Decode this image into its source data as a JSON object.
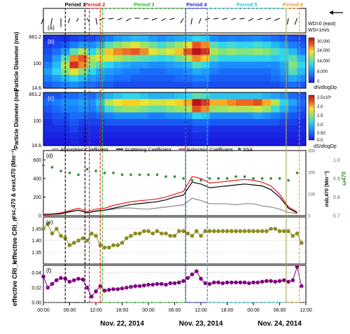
{
  "chart_data": [
    {
      "id": "a",
      "type": "vector",
      "panel_label": "(a)",
      "legend": [
        "WD=0 (east)",
        "WS=1m/s"
      ],
      "periods": [
        {
          "name": "Period 1",
          "start": 5.0,
          "end": 9.5,
          "color": "#000000"
        },
        {
          "name": "Period 2",
          "start": 10.5,
          "end": 13.0,
          "color": "#e41a1c"
        },
        {
          "name": "Period 3",
          "start": 13.5,
          "end": 32.5,
          "color": "#22c022"
        },
        {
          "name": "Period 4",
          "start": 32.5,
          "end": 37.5,
          "color": "#2222dd"
        },
        {
          "name": "Period 5",
          "start": 37.5,
          "end": 55.5,
          "color": "#22cccc"
        },
        {
          "name": "Period 6",
          "start": 55.5,
          "end": 58.5,
          "color": "#f39c12"
        }
      ],
      "x": [
        0,
        2,
        4,
        6,
        8,
        10,
        12,
        14,
        16,
        18,
        20,
        22,
        24,
        26,
        28,
        30,
        32,
        34,
        36,
        38,
        40,
        42,
        44,
        46,
        48,
        50,
        52,
        54,
        56,
        58
      ],
      "wind_dir_deg": [
        250,
        260,
        270,
        255,
        240,
        300,
        280,
        200,
        190,
        200,
        210,
        180,
        190,
        200,
        210,
        195,
        240,
        260,
        250,
        200,
        190,
        195,
        200,
        190,
        210,
        200,
        195,
        205,
        260,
        250
      ],
      "wind_speed": [
        1.0,
        1.2,
        1.4,
        0.8,
        0.6,
        0.7,
        1.0,
        0.9,
        0.8,
        0.8,
        0.9,
        0.8,
        0.8,
        0.9,
        0.8,
        0.8,
        0.9,
        1.0,
        0.9,
        0.8,
        0.8,
        0.8,
        0.8,
        0.8,
        0.9,
        0.8,
        0.8,
        0.9,
        1.0,
        1.1
      ]
    },
    {
      "id": "b",
      "type": "heatmap",
      "panel_label": "(b)",
      "ylabel": "Particle Diameter (nm)",
      "yticks": [
        "661.2",
        "100",
        "14.6"
      ],
      "colorbar_label": "dN/dlogDp",
      "colorbar_ticks": [
        "30,000",
        "24,000",
        "16,000",
        "8,000",
        "0"
      ],
      "rows_from_top_to_bottom": 8,
      "x": [
        0,
        2,
        4,
        6,
        8,
        10,
        12,
        14,
        16,
        18,
        20,
        22,
        24,
        26,
        28,
        30,
        32,
        34,
        36,
        38,
        40,
        42,
        44,
        46,
        48,
        50,
        52,
        54,
        56,
        58
      ],
      "values": [
        [
          1000,
          1500,
          1200,
          2000,
          3000,
          2500,
          4000,
          6000,
          8000,
          9000,
          10000,
          9500,
          8000,
          7000,
          8000,
          9000,
          10000,
          12000,
          11000,
          7000,
          6000,
          6500,
          6000,
          6500,
          7000,
          6000,
          5000,
          4000,
          3000,
          2500
        ],
        [
          2000,
          3000,
          4000,
          6000,
          8000,
          7000,
          9000,
          14000,
          16000,
          18000,
          20000,
          17000,
          15000,
          13000,
          15000,
          17000,
          20000,
          26000,
          24000,
          14000,
          12000,
          13000,
          12000,
          12000,
          13000,
          12000,
          10000,
          8000,
          6000,
          4000
        ],
        [
          3000,
          5000,
          8000,
          14000,
          18000,
          12000,
          16000,
          22000,
          24000,
          25000,
          26000,
          24000,
          20000,
          18000,
          20000,
          22000,
          26000,
          30000,
          28000,
          18000,
          16000,
          17000,
          16000,
          16000,
          17000,
          16000,
          14000,
          12000,
          10000,
          6000
        ],
        [
          4000,
          8000,
          14000,
          24000,
          26000,
          18000,
          20000,
          20000,
          18000,
          16000,
          15000,
          14000,
          13000,
          12000,
          13000,
          15000,
          18000,
          24000,
          22000,
          14000,
          12000,
          12000,
          12000,
          12000,
          12000,
          12000,
          11000,
          12000,
          14000,
          10000
        ],
        [
          6000,
          10000,
          18000,
          28000,
          24000,
          16000,
          14000,
          12000,
          10000,
          9000,
          8000,
          8000,
          7000,
          7000,
          8000,
          9000,
          10000,
          14000,
          12000,
          8000,
          7000,
          7000,
          7000,
          7000,
          7000,
          7000,
          7000,
          9000,
          16000,
          12000
        ],
        [
          8000,
          12000,
          16000,
          20000,
          16000,
          12000,
          9000,
          8000,
          7000,
          6000,
          6000,
          5000,
          5000,
          5000,
          6000,
          6000,
          7000,
          9000,
          8000,
          6000,
          5000,
          5000,
          5000,
          5000,
          5000,
          5000,
          6000,
          8000,
          14000,
          10000
        ],
        [
          6000,
          8000,
          10000,
          12000,
          10000,
          8000,
          7000,
          6000,
          5000,
          5000,
          4000,
          4000,
          4000,
          4000,
          4000,
          5000,
          5000,
          6000,
          6000,
          4000,
          4000,
          4000,
          4000,
          4000,
          4000,
          4000,
          5000,
          6000,
          9000,
          7000
        ],
        [
          4000,
          5000,
          6000,
          7000,
          6000,
          5000,
          4000,
          4000,
          3000,
          3000,
          3000,
          3000,
          3000,
          3000,
          3000,
          3000,
          3000,
          4000,
          4000,
          3000,
          3000,
          3000,
          3000,
          3000,
          3000,
          3000,
          3000,
          4000,
          5000,
          4000
        ]
      ],
      "zlim": [
        0,
        30000
      ]
    },
    {
      "id": "c",
      "type": "heatmap",
      "panel_label": "(c)",
      "ylabel": "Particle Diameter (nm)",
      "yticks": [
        "661.2",
        "100",
        "14.6"
      ],
      "colorbar_label": "dS/dlogDp",
      "colorbar_ticks": [
        "2.5x10⁹",
        "2.0",
        "1.5",
        "1.0",
        "0.50",
        "0.0"
      ],
      "rows_from_top_to_bottom": 8,
      "x": [
        0,
        2,
        4,
        6,
        8,
        10,
        12,
        14,
        16,
        18,
        20,
        22,
        24,
        26,
        28,
        30,
        32,
        34,
        36,
        38,
        40,
        42,
        44,
        46,
        48,
        50,
        52,
        54,
        56,
        58
      ],
      "values": [
        [
          0.3,
          0.3,
          0.4,
          0.4,
          0.5,
          0.4,
          0.6,
          0.8,
          0.9,
          1.0,
          1.0,
          0.9,
          0.8,
          0.8,
          0.8,
          0.9,
          1.0,
          1.2,
          1.1,
          0.9,
          0.9,
          0.9,
          0.9,
          0.9,
          0.9,
          0.8,
          0.7,
          0.6,
          0.4,
          0.3
        ],
        [
          0.4,
          0.5,
          0.6,
          0.6,
          0.7,
          0.6,
          0.9,
          1.5,
          1.7,
          1.8,
          1.8,
          1.7,
          1.6,
          1.6,
          1.7,
          1.8,
          1.9,
          2.5,
          2.3,
          1.9,
          1.9,
          2.0,
          2.1,
          2.1,
          2.2,
          1.9,
          1.5,
          1.0,
          0.7,
          0.4
        ],
        [
          0.3,
          0.4,
          0.5,
          0.5,
          0.6,
          0.5,
          0.7,
          1.1,
          1.3,
          1.4,
          1.4,
          1.3,
          1.2,
          1.2,
          1.3,
          1.4,
          1.5,
          2.2,
          2.0,
          1.4,
          1.4,
          1.5,
          1.5,
          1.5,
          1.6,
          1.4,
          1.1,
          0.8,
          0.5,
          0.3
        ],
        [
          0.2,
          0.3,
          0.3,
          0.4,
          0.4,
          0.3,
          0.4,
          0.5,
          0.6,
          0.6,
          0.6,
          0.6,
          0.5,
          0.5,
          0.6,
          0.6,
          0.7,
          1.0,
          0.9,
          0.6,
          0.6,
          0.6,
          0.6,
          0.6,
          0.7,
          0.6,
          0.5,
          0.4,
          0.3,
          0.2
        ],
        [
          0.1,
          0.2,
          0.2,
          0.3,
          0.2,
          0.2,
          0.2,
          0.3,
          0.3,
          0.3,
          0.3,
          0.3,
          0.3,
          0.3,
          0.3,
          0.3,
          0.3,
          0.4,
          0.4,
          0.3,
          0.3,
          0.3,
          0.3,
          0.3,
          0.3,
          0.3,
          0.3,
          0.2,
          0.2,
          0.1
        ],
        [
          0.1,
          0.1,
          0.1,
          0.2,
          0.1,
          0.1,
          0.1,
          0.1,
          0.1,
          0.1,
          0.1,
          0.1,
          0.1,
          0.1,
          0.1,
          0.1,
          0.1,
          0.2,
          0.2,
          0.1,
          0.1,
          0.1,
          0.1,
          0.1,
          0.1,
          0.1,
          0.1,
          0.1,
          0.1,
          0.1
        ],
        [
          0.05,
          0.05,
          0.05,
          0.1,
          0.05,
          0.05,
          0.05,
          0.05,
          0.05,
          0.05,
          0.05,
          0.05,
          0.05,
          0.05,
          0.05,
          0.05,
          0.05,
          0.1,
          0.1,
          0.05,
          0.05,
          0.05,
          0.05,
          0.05,
          0.05,
          0.05,
          0.05,
          0.05,
          0.05,
          0.05
        ],
        [
          0.0,
          0.0,
          0.0,
          0.05,
          0.0,
          0.0,
          0.0,
          0.0,
          0.0,
          0.0,
          0.0,
          0.0,
          0.0,
          0.0,
          0.0,
          0.0,
          0.0,
          0.05,
          0.05,
          0.0,
          0.0,
          0.0,
          0.0,
          0.0,
          0.0,
          0.0,
          0.0,
          0.0,
          0.0,
          0.0
        ]
      ],
      "zlim": [
        0,
        2.5
      ]
    },
    {
      "id": "d",
      "type": "line",
      "panel_label": "(d)",
      "ylabel_left": "σsc,470 & σext,470 (Mm⁻¹)",
      "ylabel_right1": "σab,470 (Mm⁻¹)",
      "ylabel_right2": "ω470",
      "ylim_left": [
        0,
        700
      ],
      "yticks_left": [
        0,
        200,
        400,
        600
      ],
      "ylim_right1": [
        0,
        300
      ],
      "yticks_right1": [
        0,
        100,
        200,
        300
      ],
      "ylim_right2": [
        0.7,
        1.05
      ],
      "yticks_right2": [
        0.7,
        0.8,
        0.9,
        1.0
      ],
      "legend": [
        "Absorption Coefficient",
        "Scattering Coefficient",
        "Extinction Coefficient",
        "SSA"
      ],
      "x": [
        0,
        2,
        4,
        6,
        8,
        10,
        12,
        14,
        16,
        18,
        20,
        22,
        24,
        26,
        28,
        30,
        32,
        34,
        36,
        38,
        40,
        42,
        44,
        46,
        48,
        50,
        52,
        54,
        56,
        58
      ],
      "series": [
        {
          "name": "Absorption Coefficient",
          "axis": "right1",
          "color": "#888888",
          "values": [
            5,
            8,
            12,
            20,
            25,
            15,
            20,
            25,
            30,
            35,
            35,
            32,
            30,
            35,
            40,
            45,
            50,
            80,
            70,
            55,
            55,
            55,
            50,
            55,
            55,
            45,
            40,
            30,
            15,
            10
          ]
        },
        {
          "name": "Scattering Coefficient",
          "axis": "left",
          "color": "#000000",
          "values": [
            10,
            15,
            20,
            40,
            60,
            30,
            50,
            60,
            80,
            100,
            120,
            130,
            140,
            150,
            170,
            200,
            220,
            360,
            340,
            300,
            310,
            320,
            330,
            340,
            330,
            320,
            280,
            200,
            80,
            30
          ]
        },
        {
          "name": "Extinction Coefficient",
          "axis": "left",
          "color": "#e41a1c",
          "values": [
            15,
            20,
            30,
            55,
            80,
            45,
            70,
            80,
            110,
            130,
            150,
            160,
            170,
            180,
            200,
            230,
            260,
            420,
            400,
            350,
            360,
            370,
            380,
            390,
            380,
            360,
            320,
            230,
            95,
            40
          ]
        },
        {
          "name": "SSA",
          "axis": "right2",
          "color": "#2e8b2e",
          "values": [
            0.97,
            0.96,
            0.94,
            0.93,
            0.92,
            0.95,
            0.94,
            0.93,
            0.93,
            0.92,
            0.92,
            0.92,
            0.92,
            0.92,
            0.91,
            0.91,
            0.9,
            0.89,
            0.89,
            0.9,
            0.9,
            0.9,
            0.91,
            0.91,
            0.9,
            0.9,
            0.9,
            0.9,
            0.89,
            0.93
          ]
        }
      ]
    },
    {
      "id": "e",
      "type": "scatter",
      "panel_label": "(e)",
      "ylabel": "effective CRI_n",
      "ylim": [
        1.3,
        1.5
      ],
      "yticks": [
        1.35,
        1.4,
        1.45
      ],
      "color": "#8b8b1c",
      "x": [
        0,
        1,
        2,
        3,
        4,
        5,
        6,
        7,
        8,
        9,
        10,
        11,
        12,
        13,
        14,
        15,
        16,
        17,
        18,
        19,
        20,
        21,
        22,
        23,
        24,
        25,
        26,
        27,
        28,
        29,
        30,
        31,
        32,
        33,
        34,
        35,
        36,
        37,
        38,
        39,
        40,
        41,
        42,
        43,
        44,
        45,
        46,
        47,
        48,
        49,
        50,
        51,
        52,
        53,
        54,
        55,
        56,
        57,
        58,
        59
      ],
      "values": [
        1.45,
        1.47,
        1.43,
        1.45,
        1.42,
        1.41,
        1.38,
        1.39,
        1.4,
        1.41,
        1.4,
        1.43,
        1.42,
        1.38,
        1.37,
        1.37,
        1.38,
        1.38,
        1.39,
        1.41,
        1.42,
        1.43,
        1.43,
        1.44,
        1.44,
        1.43,
        1.44,
        1.43,
        1.43,
        1.42,
        1.42,
        1.44,
        1.44,
        1.43,
        1.42,
        1.44,
        1.42,
        1.44,
        1.44,
        1.44,
        1.44,
        1.44,
        1.44,
        1.44,
        1.44,
        1.44,
        1.44,
        1.44,
        1.44,
        1.44,
        1.44,
        1.44,
        1.45,
        1.45,
        1.44,
        1.44,
        1.44,
        1.42,
        1.43,
        1.39
      ]
    },
    {
      "id": "f",
      "type": "scatter",
      "panel_label": "(f)",
      "ylabel": "effective CRI_k",
      "ylim": [
        0,
        0.05
      ],
      "yticks": [
        0.0,
        0.02,
        0.04
      ],
      "color": "#800080",
      "x": [
        0,
        1,
        2,
        3,
        4,
        5,
        6,
        7,
        8,
        9,
        10,
        11,
        12,
        13,
        14,
        15,
        16,
        17,
        18,
        19,
        20,
        21,
        22,
        23,
        24,
        25,
        26,
        27,
        28,
        29,
        30,
        31,
        32,
        33,
        34,
        35,
        36,
        37,
        38,
        39,
        40,
        41,
        42,
        43,
        44,
        45,
        46,
        47,
        48,
        49,
        50,
        51,
        52,
        53,
        54,
        55,
        56,
        57,
        58,
        59
      ],
      "values": [
        0.035,
        0.02,
        0.025,
        0.03,
        0.033,
        0.032,
        0.028,
        0.03,
        0.032,
        0.031,
        0.02,
        0.008,
        0.015,
        0.022,
        0.016,
        0.017,
        0.018,
        0.018,
        0.019,
        0.02,
        0.021,
        0.022,
        0.022,
        0.023,
        0.024,
        0.024,
        0.025,
        0.025,
        0.024,
        0.026,
        0.026,
        0.027,
        0.029,
        0.033,
        0.038,
        0.042,
        0.032,
        0.026,
        0.025,
        0.027,
        0.027,
        0.026,
        0.027,
        0.027,
        0.027,
        0.027,
        0.027,
        0.026,
        0.027,
        0.027,
        0.028,
        0.029,
        0.029,
        0.028,
        0.029,
        0.03,
        0.028,
        0.03,
        0.048,
        0.022
      ]
    }
  ],
  "x_axis": {
    "xlim": [
      0,
      60
    ],
    "ticks": [
      0,
      6,
      12,
      18,
      24,
      30,
      36,
      42,
      48,
      54,
      60
    ],
    "tick_labels": [
      "00:00",
      "06:00",
      "12:00",
      "18:00",
      "00:00",
      "06:00",
      "12:00",
      "18:00",
      "00:00",
      "06:00",
      "12:00"
    ],
    "date_labels": [
      {
        "x": 18,
        "label": "Nov. 22, 2014"
      },
      {
        "x": 36,
        "label": "Nov. 23, 2014"
      },
      {
        "x": 54,
        "label": "Nov. 24, 2014"
      }
    ]
  }
}
